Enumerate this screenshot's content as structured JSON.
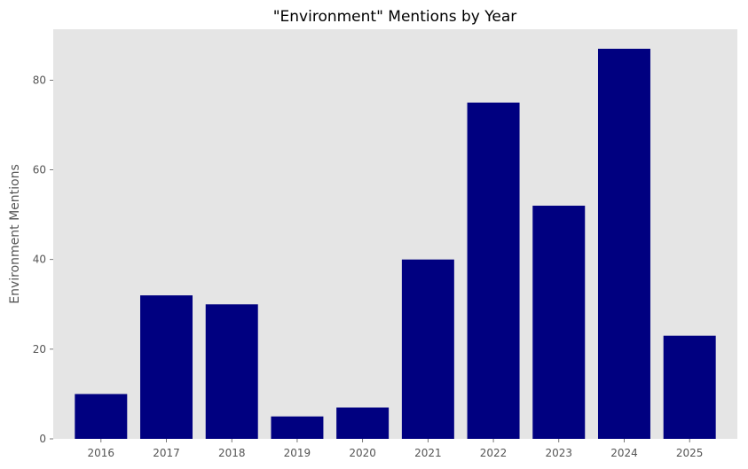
{
  "chart_data": {
    "type": "bar",
    "title": "\"Environment\" Mentions by Year",
    "xlabel": "",
    "ylabel": "Environment Mentions",
    "categories": [
      "2016",
      "2017",
      "2018",
      "2019",
      "2020",
      "2021",
      "2022",
      "2023",
      "2024",
      "2025"
    ],
    "values": [
      10,
      32,
      30,
      5,
      7,
      40,
      75,
      52,
      87,
      23
    ],
    "ylim": [
      0,
      91.35
    ],
    "yticks": [
      0,
      20,
      40,
      60,
      80
    ],
    "grid": false,
    "legend": "none",
    "colors": {
      "bar": "#000080",
      "plot_background": "#e5e5e5",
      "tick_text": "#555555",
      "title_text": "#000000"
    }
  }
}
